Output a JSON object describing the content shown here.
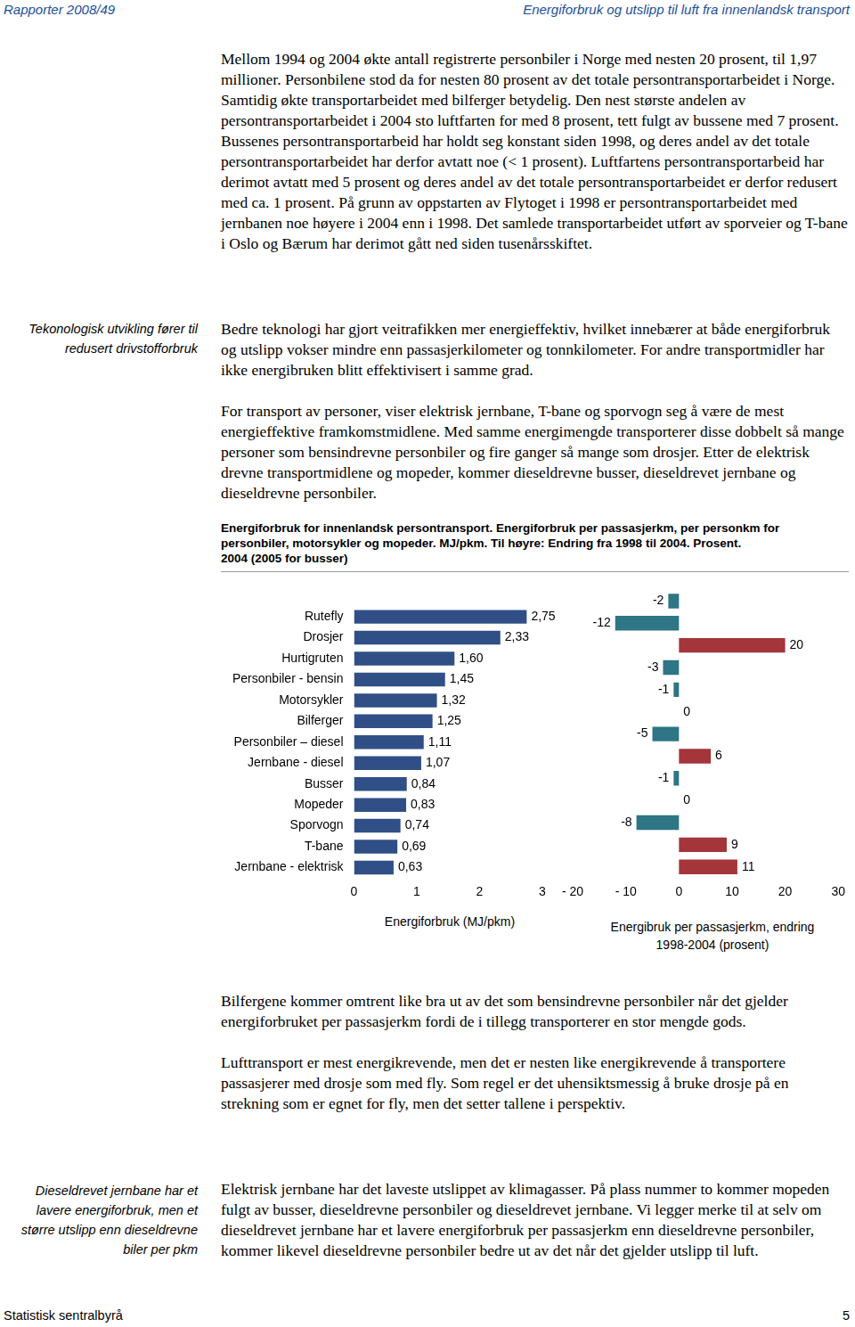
{
  "header": {
    "left": "Rapporter 2008/49",
    "right": "Energiforbruk og utslipp til luft fra innenlandsk transport"
  },
  "sections": [
    {
      "paragraphs": [
        "Mellom 1994 og 2004 økte antall registrerte personbiler i Norge med nesten 20 prosent, til 1,97 millioner. Personbilene stod da for nesten 80 prosent av det totale persontransportarbeidet i Norge. Samtidig økte transportarbeidet med bilferger betydelig. Den nest største andelen av persontransportarbeidet i 2004 sto luftfarten for med 8 prosent, tett fulgt av bussene med 7 prosent. Bussenes persontransportarbeid har holdt seg konstant siden 1998, og deres andel av det totale persontransportarbeidet har derfor avtatt noe (< 1 prosent). Luftfartens persontransportarbeid har derimot avtatt med 5 prosent og deres andel av det totale persontransportarbeidet er derfor redusert med ca. 1 prosent. På grunn av oppstarten av Flytoget i 1998 er persontransportarbeidet med jernbanen noe høyere i 2004 enn i 1998. Det samlede transportarbeidet utført av sporveier og T-bane i Oslo og Bærum har derimot gått ned siden tusenårsskiftet."
      ]
    },
    {
      "note": "Tekonologisk utvikling fører til redusert drivstofforbruk",
      "paragraphs": [
        "Bedre teknologi har gjort veitrafikken mer energieffektiv, hvilket innebærer at både energiforbruk og utslipp vokser mindre enn passasjerkilometer og tonnkilometer. For andre transportmidler har ikke energibruken blitt effektivisert i samme grad.",
        "For transport av personer, viser elektrisk jernbane, T-bane og sporvogn seg å være de mest energieffektive framkomstmidlene. Med samme energimengde transporterer disse dobbelt så mange personer som bensindrevne personbiler og fire ganger så mange som drosjer. Etter de elektrisk drevne transportmidlene og mopeder, kommer dieseldrevne busser, dieseldrevet jernbane og dieseldrevne personbiler."
      ]
    },
    {
      "paragraphs": [
        "Bilfergene kommer omtrent like bra ut av det som bensindrevne personbiler når det gjelder energiforbruket per passasjerkm fordi de i tillegg transporterer en stor mengde gods.",
        "Lufttransport er mest energikrevende, men det er nesten like energikrevende å transportere passasjerer med drosje som med fly. Som regel er det uhensiktsmessig å bruke drosje på en strekning som er egnet for fly, men det setter tallene i perspektiv."
      ]
    },
    {
      "note": "Dieseldrevet jernbane har et lavere energiforbruk, men et større utslipp enn dieseldrevne biler per pkm",
      "paragraphs": [
        "Elektrisk jernbane har det laveste utslippet av klimagasser. På plass nummer to kommer mopeden fulgt av busser, dieseldrevne personbiler og dieseldrevet jernbane. Vi legger merke til at selv om dieseldrevet jernbane har et lavere energiforbruk per passasjerkm enn dieseldrevne personbiler, kommer likevel dieseldrevne personbiler bedre ut av det når det gjelder utslipp til luft."
      ]
    }
  ],
  "figure_caption": [
    "Energiforbruk for innenlandsk persontransport. Energiforbruk per passasjerkm, per personkm for personbiler, motorsykler og mopeder. MJ/pkm. Til høyre: Endring fra 1998 til 2004. Prosent.",
    "2004 (2005 for busser)"
  ],
  "chart_data": [
    {
      "type": "bar",
      "orientation": "horizontal",
      "categories": [
        "Rutefly",
        "Drosjer",
        "Hurtigruten",
        "Personbiler - bensin",
        "Motorsykler",
        "Bilferger",
        "Personbiler – diesel",
        "Jernbane - diesel",
        "Busser",
        "Mopeder",
        "Sporvogn",
        "T-bane",
        "Jernbane - elektrisk"
      ],
      "values": [
        2.75,
        2.33,
        1.6,
        1.45,
        1.32,
        1.25,
        1.11,
        1.07,
        0.84,
        0.83,
        0.74,
        0.69,
        0.63
      ],
      "value_labels": [
        "2,75",
        "2,33",
        "1,60",
        "1,45",
        "1,32",
        "1,25",
        "1,11",
        "1,07",
        "0,84",
        "0,83",
        "0,74",
        "0,69",
        "0,63"
      ],
      "color": "#2f4f86",
      "xlim": [
        0,
        3
      ],
      "xticks": [
        0,
        1,
        2,
        3
      ],
      "x_label": "Energiforbruk (MJ/pkm)",
      "data_labels": true,
      "grid": false
    },
    {
      "type": "bar",
      "orientation": "horizontal",
      "categories": [
        "Rutefly",
        "Drosjer",
        "Hurtigruten",
        "Personbiler - bensin",
        "Motorsykler",
        "Bilferger",
        "Personbiler – diesel",
        "Jernbane - diesel",
        "Busser",
        "Mopeder",
        "Sporvogn",
        "T-bane",
        "Jernbane - elektrisk"
      ],
      "values": [
        -2,
        -12,
        20,
        -3,
        -1,
        0,
        -5,
        6,
        -1,
        0,
        -8,
        9,
        11
      ],
      "colors": [
        "#2e7585",
        "#2e7585",
        "#a3353b",
        "#2e7585",
        "#2e7585",
        "#2e7585",
        "#2e7585",
        "#a3353b",
        "#2e7585",
        "#2e7585",
        "#2e7585",
        "#a3353b",
        "#a3353b"
      ],
      "xlim": [
        -20,
        30
      ],
      "xticks": [
        {
          "value": -20,
          "label": "- 20"
        },
        {
          "value": -10,
          "label": "- 10"
        },
        0,
        10,
        20,
        30
      ],
      "x_label": [
        "Energibruk per passasjerkm, endring",
        "1998-2004 (prosent)"
      ],
      "data_labels": true,
      "tick_labels": "x",
      "grid": false
    }
  ],
  "footer": {
    "left": "Statistisk sentralbyrå",
    "right": "5"
  }
}
